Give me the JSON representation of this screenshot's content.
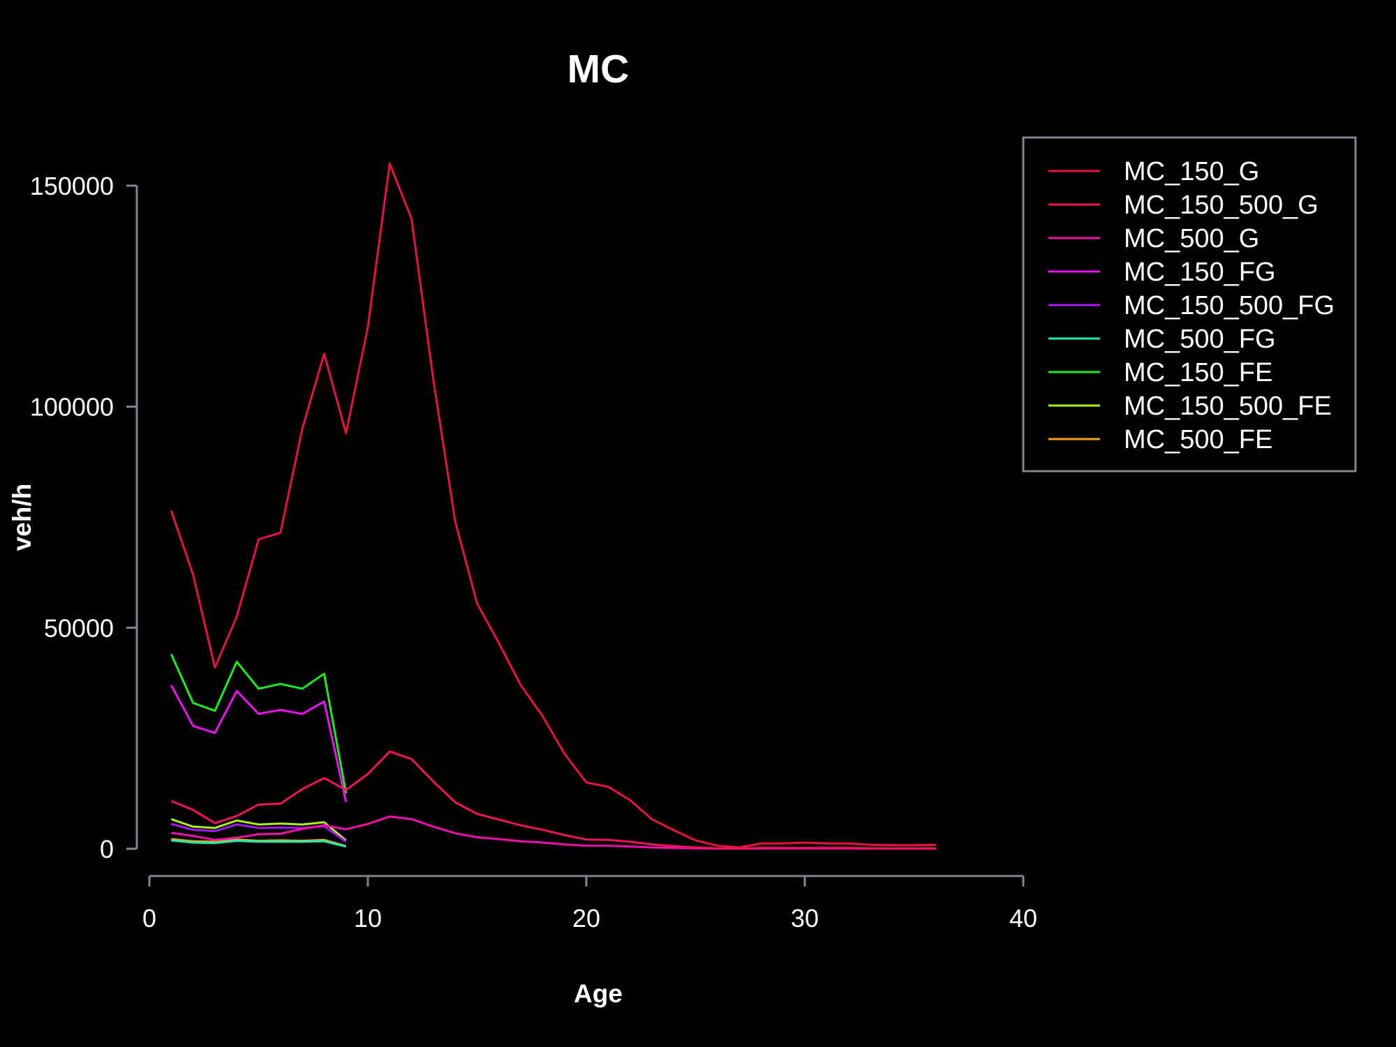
{
  "chart_data": {
    "type": "line",
    "title": "MC",
    "xlabel": "Age",
    "ylabel": "veh/h",
    "xlim": [
      0,
      40
    ],
    "ylim": [
      0,
      150000
    ],
    "x_ticks": [
      "0",
      "10",
      "20",
      "30",
      "40"
    ],
    "y_ticks": [
      "0",
      "50000",
      "100000",
      "150000"
    ],
    "grid": false,
    "legend_position": "top-right",
    "background": "#000000",
    "series": [
      {
        "name": "MC_150_G",
        "color": "#e8123f",
        "x": [
          1,
          2,
          3,
          4,
          5,
          6,
          7,
          8,
          9,
          10,
          11,
          12,
          13,
          14,
          15,
          16,
          17,
          18,
          19,
          20,
          21,
          22,
          23,
          24,
          25,
          26,
          27,
          28,
          29,
          30,
          31,
          32,
          33,
          34,
          35,
          36
        ],
        "y": [
          76500,
          62000,
          41000,
          52500,
          70000,
          71500,
          95000,
          112000,
          94000,
          118000,
          155000,
          142500,
          106000,
          74000,
          55500,
          46500,
          37000,
          30000,
          21500,
          15000,
          14000,
          11000,
          6700,
          4200,
          1900,
          700,
          300,
          1200,
          1200,
          1400,
          1200,
          1200,
          900,
          800,
          800,
          900
        ]
      },
      {
        "name": "MC_150_500_G",
        "color": "#f0125e",
        "x": [
          1,
          2,
          3,
          4,
          5,
          6,
          7,
          8,
          9,
          10,
          11,
          12,
          13,
          14,
          15,
          16,
          17,
          18,
          19,
          20,
          21,
          22,
          23,
          24,
          25,
          26,
          27,
          28,
          29,
          30,
          31,
          32,
          33,
          34,
          35,
          36
        ],
        "y": [
          10800,
          8800,
          5800,
          7400,
          10000,
          10200,
          13500,
          16000,
          13300,
          16900,
          22000,
          20300,
          15200,
          10500,
          7900,
          6600,
          5300,
          4300,
          3100,
          2100,
          2000,
          1600,
          1000,
          600,
          300,
          100,
          50,
          200,
          200,
          200,
          200,
          200,
          100,
          100,
          100,
          100
        ]
      },
      {
        "name": "MC_500_G",
        "color": "#f20eaa",
        "x": [
          1,
          2,
          3,
          4,
          5,
          6,
          7,
          8,
          9,
          10,
          11,
          12,
          13,
          14,
          15,
          16,
          17,
          18,
          19,
          20,
          21,
          22,
          23,
          24,
          25,
          26,
          27,
          28,
          29,
          30,
          31,
          32,
          33,
          34,
          35,
          36
        ],
        "y": [
          3600,
          2900,
          2000,
          2500,
          3300,
          3400,
          4500,
          5300,
          4400,
          5600,
          7300,
          6700,
          5000,
          3500,
          2600,
          2200,
          1700,
          1400,
          1000,
          700,
          700,
          500,
          300,
          200,
          100,
          40,
          20,
          60,
          60,
          70,
          60,
          60,
          40,
          40,
          40,
          40
        ]
      },
      {
        "name": "MC_150_FG",
        "color": "#ee10f2",
        "x": [
          1,
          2,
          3,
          4,
          5,
          6,
          7,
          8,
          9
        ],
        "y": [
          37000,
          27800,
          26200,
          35700,
          30500,
          31400,
          30500,
          33300,
          10600
        ]
      },
      {
        "name": "MC_150_500_FG",
        "color": "#a817f0",
        "x": [
          1,
          2,
          3,
          4,
          5,
          6,
          7,
          8,
          9
        ],
        "y": [
          5600,
          4300,
          4000,
          5500,
          4700,
          4800,
          4700,
          5100,
          1600
        ]
      },
      {
        "name": "MC_500_FG",
        "color": "#17f0b0",
        "x": [
          1,
          2,
          3,
          4,
          5,
          6,
          7,
          8,
          9
        ],
        "y": [
          1900,
          1400,
          1300,
          1800,
          1600,
          1600,
          1600,
          1700,
          500
        ]
      },
      {
        "name": "MC_150_FE",
        "color": "#17ef1e",
        "x": [
          1,
          2,
          3,
          4,
          5,
          6,
          7,
          8,
          9
        ],
        "y": [
          44000,
          33000,
          31200,
          42300,
          36200,
          37300,
          36200,
          39600,
          12600
        ]
      },
      {
        "name": "MC_150_500_FE",
        "color": "#a9f016",
        "x": [
          1,
          2,
          3,
          4,
          5,
          6,
          7,
          8,
          9
        ],
        "y": [
          6700,
          5000,
          4700,
          6400,
          5500,
          5700,
          5500,
          6000,
          1900
        ]
      },
      {
        "name": "MC_500_FE",
        "color": "#f2a212",
        "x": [
          1,
          2,
          3,
          4,
          5,
          6,
          7,
          8,
          9
        ],
        "y": [
          2200,
          1700,
          1600,
          2100,
          1800,
          1900,
          1800,
          2000,
          600
        ]
      }
    ]
  }
}
